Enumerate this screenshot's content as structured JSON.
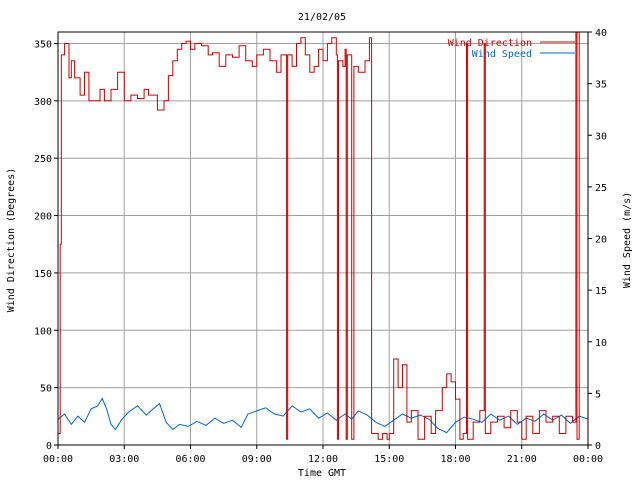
{
  "chart_data": {
    "type": "line",
    "title": "21/02/05",
    "xlabel": "Time GMT",
    "ylabel_left": "Wind Direction (Degrees)",
    "ylabel_right": "Wind Speed (m/s)",
    "x_ticks": [
      "00:00",
      "03:00",
      "06:00",
      "09:00",
      "12:00",
      "15:00",
      "18:00",
      "21:00",
      "00:00"
    ],
    "x_range_hours": [
      0,
      24
    ],
    "y_left_ticks": [
      0,
      50,
      100,
      150,
      200,
      250,
      300,
      350
    ],
    "y_left_range": [
      0,
      360
    ],
    "y_right_ticks": [
      0,
      5,
      10,
      15,
      20,
      25,
      30,
      35,
      40
    ],
    "y_right_range": [
      0,
      40
    ],
    "grid": true,
    "legend_position": "top-right",
    "colors": {
      "direction": "#cc0000",
      "speed": "#0066cc",
      "grid": "#a0a0a0"
    },
    "series": [
      {
        "name": "Wind Direction",
        "axis": "left",
        "points": [
          [
            0.0,
            10
          ],
          [
            0.1,
            175
          ],
          [
            0.15,
            340
          ],
          [
            0.3,
            350
          ],
          [
            0.5,
            320
          ],
          [
            0.6,
            335
          ],
          [
            0.75,
            320
          ],
          [
            1.0,
            305
          ],
          [
            1.2,
            325
          ],
          [
            1.4,
            300
          ],
          [
            1.6,
            300
          ],
          [
            1.9,
            310
          ],
          [
            2.1,
            300
          ],
          [
            2.4,
            310
          ],
          [
            2.7,
            325
          ],
          [
            3.0,
            300
          ],
          [
            3.3,
            305
          ],
          [
            3.6,
            302
          ],
          [
            3.9,
            310
          ],
          [
            4.1,
            305
          ],
          [
            4.5,
            292
          ],
          [
            4.8,
            300
          ],
          [
            5.0,
            322
          ],
          [
            5.2,
            335
          ],
          [
            5.4,
            345
          ],
          [
            5.6,
            350
          ],
          [
            5.8,
            352
          ],
          [
            6.0,
            345
          ],
          [
            6.2,
            350
          ],
          [
            6.5,
            348
          ],
          [
            6.8,
            340
          ],
          [
            7.0,
            342
          ],
          [
            7.3,
            330
          ],
          [
            7.6,
            340
          ],
          [
            7.9,
            338
          ],
          [
            8.2,
            348
          ],
          [
            8.5,
            335
          ],
          [
            8.8,
            330
          ],
          [
            9.0,
            340
          ],
          [
            9.3,
            345
          ],
          [
            9.6,
            335
          ],
          [
            9.9,
            325
          ],
          [
            10.1,
            340
          ],
          [
            10.3,
            340
          ],
          [
            10.35,
            5
          ],
          [
            10.4,
            340
          ],
          [
            10.6,
            330
          ],
          [
            10.8,
            350
          ],
          [
            11.0,
            355
          ],
          [
            11.2,
            340
          ],
          [
            11.4,
            325
          ],
          [
            11.6,
            330
          ],
          [
            11.8,
            345
          ],
          [
            12.0,
            335
          ],
          [
            12.2,
            350
          ],
          [
            12.4,
            355
          ],
          [
            12.6,
            340
          ],
          [
            12.65,
            5
          ],
          [
            12.7,
            335
          ],
          [
            12.9,
            330
          ],
          [
            13.0,
            345
          ],
          [
            13.05,
            5
          ],
          [
            13.1,
            340
          ],
          [
            13.3,
            5
          ],
          [
            13.4,
            330
          ],
          [
            13.6,
            325
          ],
          [
            13.9,
            335
          ],
          [
            14.1,
            355
          ],
          [
            14.2,
            10
          ],
          [
            14.5,
            5
          ],
          [
            14.7,
            10
          ],
          [
            14.9,
            5
          ],
          [
            15.0,
            10
          ],
          [
            15.2,
            75
          ],
          [
            15.4,
            50
          ],
          [
            15.6,
            70
          ],
          [
            15.8,
            20
          ],
          [
            16.0,
            30
          ],
          [
            16.3,
            5
          ],
          [
            16.6,
            25
          ],
          [
            16.9,
            10
          ],
          [
            17.1,
            30
          ],
          [
            17.4,
            50
          ],
          [
            17.6,
            62
          ],
          [
            17.8,
            55
          ],
          [
            18.0,
            40
          ],
          [
            18.2,
            5
          ],
          [
            18.35,
            10
          ],
          [
            18.5,
            350
          ],
          [
            18.55,
            5
          ],
          [
            18.8,
            20
          ],
          [
            19.1,
            30
          ],
          [
            19.3,
            350
          ],
          [
            19.35,
            10
          ],
          [
            19.6,
            20
          ],
          [
            19.9,
            25
          ],
          [
            20.2,
            15
          ],
          [
            20.5,
            30
          ],
          [
            20.8,
            20
          ],
          [
            21.0,
            5
          ],
          [
            21.2,
            25
          ],
          [
            21.5,
            10
          ],
          [
            21.8,
            30
          ],
          [
            22.1,
            20
          ],
          [
            22.4,
            25
          ],
          [
            22.7,
            10
          ],
          [
            23.0,
            25
          ],
          [
            23.3,
            20
          ],
          [
            23.45,
            360
          ],
          [
            23.5,
            5
          ],
          [
            23.6,
            360
          ],
          [
            24.0,
            360
          ]
        ]
      },
      {
        "name": "Wind Speed",
        "axis": "right",
        "points": [
          [
            0.0,
            2.5
          ],
          [
            0.3,
            3.0
          ],
          [
            0.6,
            2.0
          ],
          [
            0.9,
            2.8
          ],
          [
            1.2,
            2.2
          ],
          [
            1.5,
            3.5
          ],
          [
            1.8,
            3.8
          ],
          [
            2.0,
            4.5
          ],
          [
            2.2,
            3.5
          ],
          [
            2.4,
            2.0
          ],
          [
            2.6,
            1.5
          ],
          [
            2.9,
            2.5
          ],
          [
            3.2,
            3.2
          ],
          [
            3.6,
            3.8
          ],
          [
            4.0,
            2.9
          ],
          [
            4.3,
            3.5
          ],
          [
            4.6,
            4.0
          ],
          [
            4.9,
            2.2
          ],
          [
            5.2,
            1.5
          ],
          [
            5.5,
            2.0
          ],
          [
            5.9,
            1.8
          ],
          [
            6.3,
            2.3
          ],
          [
            6.7,
            1.9
          ],
          [
            7.1,
            2.6
          ],
          [
            7.5,
            2.1
          ],
          [
            7.9,
            2.4
          ],
          [
            8.3,
            1.7
          ],
          [
            8.6,
            3.0
          ],
          [
            9.0,
            3.3
          ],
          [
            9.4,
            3.6
          ],
          [
            9.8,
            3.0
          ],
          [
            10.2,
            2.8
          ],
          [
            10.6,
            3.8
          ],
          [
            11.0,
            3.2
          ],
          [
            11.4,
            3.5
          ],
          [
            11.8,
            2.6
          ],
          [
            12.2,
            3.1
          ],
          [
            12.6,
            2.4
          ],
          [
            13.0,
            3.0
          ],
          [
            13.3,
            2.5
          ],
          [
            13.6,
            3.3
          ],
          [
            14.0,
            2.9
          ],
          [
            14.4,
            2.2
          ],
          [
            14.8,
            1.8
          ],
          [
            15.2,
            2.4
          ],
          [
            15.6,
            3.0
          ],
          [
            16.0,
            2.6
          ],
          [
            16.4,
            2.9
          ],
          [
            16.8,
            2.5
          ],
          [
            17.2,
            1.6
          ],
          [
            17.6,
            1.2
          ],
          [
            18.0,
            2.2
          ],
          [
            18.4,
            2.7
          ],
          [
            18.8,
            2.5
          ],
          [
            19.2,
            2.2
          ],
          [
            19.6,
            3.0
          ],
          [
            20.0,
            2.4
          ],
          [
            20.4,
            2.8
          ],
          [
            20.8,
            2.0
          ],
          [
            21.2,
            2.6
          ],
          [
            21.6,
            2.3
          ],
          [
            22.0,
            3.0
          ],
          [
            22.4,
            2.4
          ],
          [
            22.8,
            2.9
          ],
          [
            23.2,
            2.1
          ],
          [
            23.6,
            2.8
          ],
          [
            24.0,
            2.5
          ]
        ]
      }
    ]
  }
}
